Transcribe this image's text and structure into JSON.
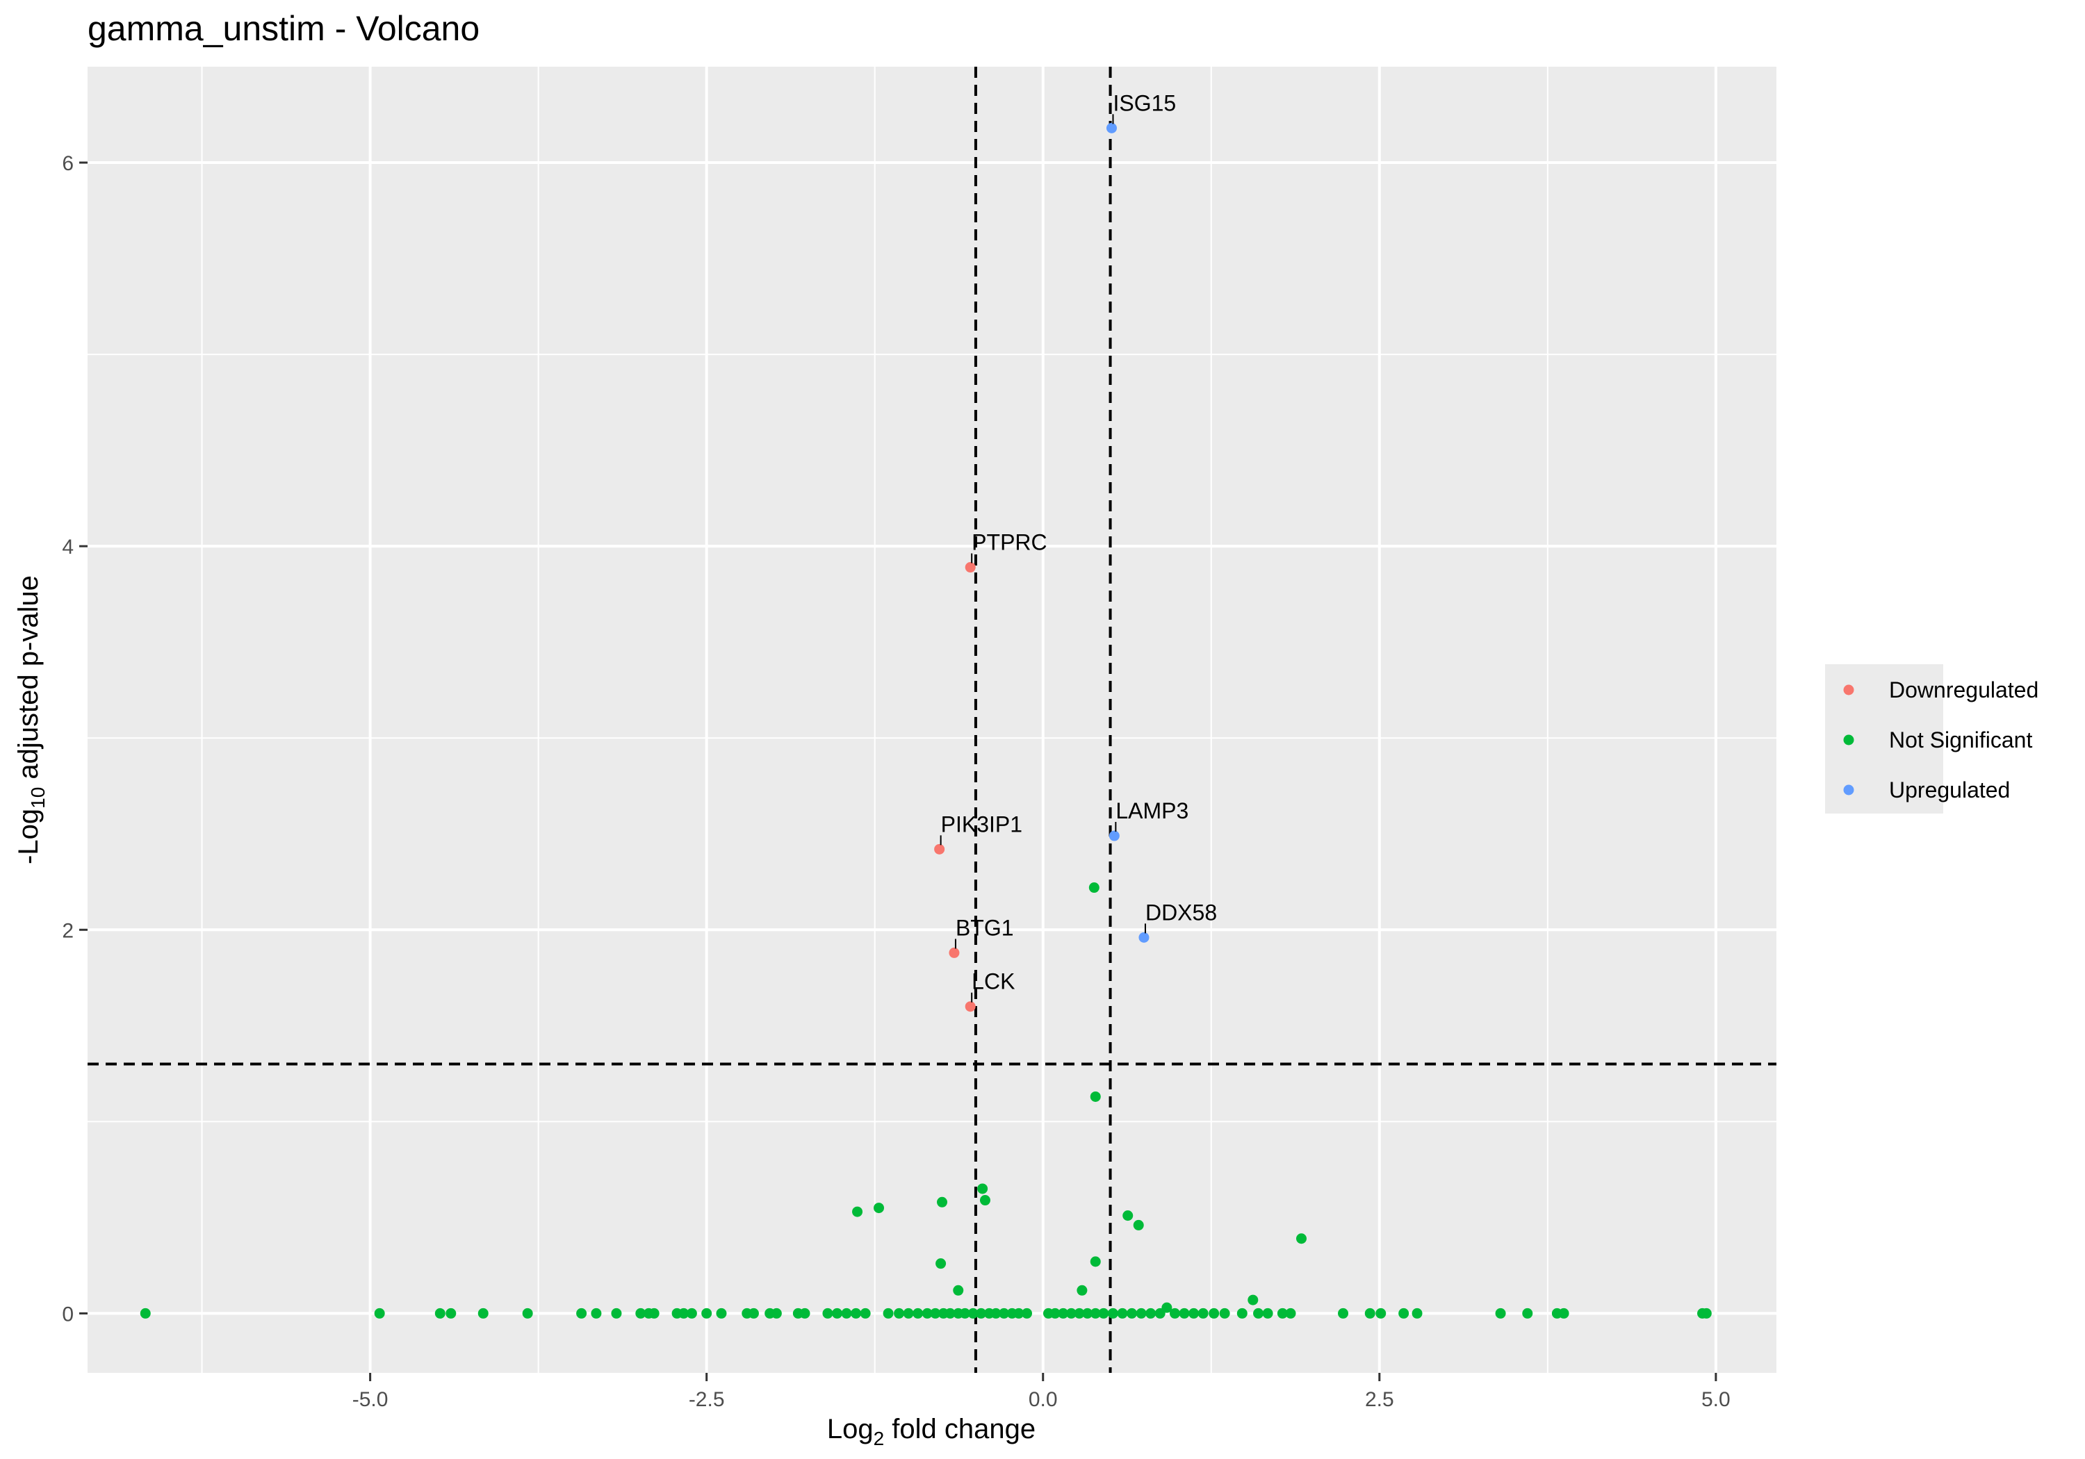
{
  "chart_data": {
    "type": "scatter",
    "title": "gamma_unstim - Volcano",
    "xlabel": {
      "prefix": "Log",
      "sub": "2",
      "suffix": " fold change"
    },
    "ylabel": {
      "prefix": "-Log",
      "sub": "10",
      "suffix": " adjusted p-value"
    },
    "xlim": [
      -7.1,
      5.45
    ],
    "ylim": [
      -0.31,
      6.5
    ],
    "x_ticks": [
      -5.0,
      -2.5,
      0.0,
      2.5,
      5.0
    ],
    "x_tick_labels": [
      "-5.0",
      "-2.5",
      "0.0",
      "2.5",
      "5.0"
    ],
    "y_ticks": [
      0,
      2,
      4,
      6
    ],
    "y_tick_labels": [
      "0",
      "2",
      "4",
      "6"
    ],
    "thresholds": {
      "fc_low": -0.5,
      "fc_high": 0.5,
      "padj_line": 1.3
    },
    "grid": true,
    "legend_placement": "right",
    "colors": {
      "Downregulated": "#F8766D",
      "Not Significant": "#00BA38",
      "Upregulated": "#619CFF",
      "panel": "#EBEBEB",
      "grid": "#FFFFFF"
    },
    "legend": [
      "Downregulated",
      "Not Significant",
      "Upregulated"
    ],
    "series": [
      {
        "name": "Downregulated",
        "points": [
          {
            "x": -0.54,
            "y": 3.89,
            "label": "PTPRC"
          },
          {
            "x": -0.77,
            "y": 2.42,
            "label": "PIK3IP1"
          },
          {
            "x": -0.66,
            "y": 1.88,
            "label": "BTG1"
          },
          {
            "x": -0.54,
            "y": 1.6,
            "label": "LCK"
          }
        ]
      },
      {
        "name": "Upregulated",
        "points": [
          {
            "x": 0.51,
            "y": 6.18,
            "label": "ISG15"
          },
          {
            "x": 0.53,
            "y": 2.49,
            "label": "LAMP3"
          },
          {
            "x": 0.75,
            "y": 1.96,
            "label": "DDX58"
          }
        ]
      },
      {
        "name": "Not Significant",
        "points": [
          {
            "x": 0.38,
            "y": 2.22
          },
          {
            "x": 0.39,
            "y": 1.13
          },
          {
            "x": -0.45,
            "y": 0.65
          },
          {
            "x": -0.43,
            "y": 0.59
          },
          {
            "x": -0.75,
            "y": 0.58
          },
          {
            "x": -1.22,
            "y": 0.55
          },
          {
            "x": -1.38,
            "y": 0.53
          },
          {
            "x": 0.63,
            "y": 0.51
          },
          {
            "x": 0.71,
            "y": 0.46
          },
          {
            "x": 1.92,
            "y": 0.39
          },
          {
            "x": -0.76,
            "y": 0.26
          },
          {
            "x": 0.39,
            "y": 0.27
          },
          {
            "x": -0.63,
            "y": 0.12
          },
          {
            "x": 0.29,
            "y": 0.12
          },
          {
            "x": 1.56,
            "y": 0.07
          },
          {
            "x": 0.92,
            "y": 0.03
          },
          {
            "x": -6.67,
            "y": 0
          },
          {
            "x": -4.93,
            "y": 0
          },
          {
            "x": -4.48,
            "y": 0
          },
          {
            "x": -4.4,
            "y": 0
          },
          {
            "x": -4.16,
            "y": 0
          },
          {
            "x": -3.83,
            "y": 0
          },
          {
            "x": -3.43,
            "y": 0
          },
          {
            "x": -3.32,
            "y": 0
          },
          {
            "x": -3.17,
            "y": 0
          },
          {
            "x": -2.99,
            "y": 0
          },
          {
            "x": -2.93,
            "y": 0
          },
          {
            "x": -2.89,
            "y": 0
          },
          {
            "x": -2.72,
            "y": 0
          },
          {
            "x": -2.67,
            "y": 0
          },
          {
            "x": -2.61,
            "y": 0
          },
          {
            "x": -2.5,
            "y": 0
          },
          {
            "x": -2.39,
            "y": 0
          },
          {
            "x": -2.2,
            "y": 0
          },
          {
            "x": -2.15,
            "y": 0
          },
          {
            "x": -2.03,
            "y": 0
          },
          {
            "x": -1.98,
            "y": 0
          },
          {
            "x": -1.82,
            "y": 0
          },
          {
            "x": -1.77,
            "y": 0
          },
          {
            "x": -1.6,
            "y": 0
          },
          {
            "x": -1.53,
            "y": 0
          },
          {
            "x": -1.46,
            "y": 0
          },
          {
            "x": -1.39,
            "y": 0
          },
          {
            "x": -1.32,
            "y": 0
          },
          {
            "x": -1.15,
            "y": 0
          },
          {
            "x": -1.07,
            "y": 0
          },
          {
            "x": -1.0,
            "y": 0
          },
          {
            "x": -0.93,
            "y": 0
          },
          {
            "x": -0.86,
            "y": 0
          },
          {
            "x": -0.8,
            "y": 0
          },
          {
            "x": -0.74,
            "y": 0
          },
          {
            "x": -0.69,
            "y": 0
          },
          {
            "x": -0.63,
            "y": 0
          },
          {
            "x": -0.58,
            "y": 0
          },
          {
            "x": -0.52,
            "y": 0
          },
          {
            "x": -0.46,
            "y": 0
          },
          {
            "x": -0.4,
            "y": 0
          },
          {
            "x": -0.35,
            "y": 0
          },
          {
            "x": -0.29,
            "y": 0
          },
          {
            "x": -0.23,
            "y": 0
          },
          {
            "x": -0.18,
            "y": 0
          },
          {
            "x": -0.12,
            "y": 0
          },
          {
            "x": 0.04,
            "y": 0
          },
          {
            "x": 0.09,
            "y": 0
          },
          {
            "x": 0.15,
            "y": 0
          },
          {
            "x": 0.21,
            "y": 0
          },
          {
            "x": 0.27,
            "y": 0
          },
          {
            "x": 0.33,
            "y": 0
          },
          {
            "x": 0.39,
            "y": 0
          },
          {
            "x": 0.45,
            "y": 0
          },
          {
            "x": 0.52,
            "y": 0
          },
          {
            "x": 0.59,
            "y": 0
          },
          {
            "x": 0.66,
            "y": 0
          },
          {
            "x": 0.73,
            "y": 0
          },
          {
            "x": 0.8,
            "y": 0
          },
          {
            "x": 0.87,
            "y": 0
          },
          {
            "x": 0.98,
            "y": 0
          },
          {
            "x": 1.05,
            "y": 0
          },
          {
            "x": 1.12,
            "y": 0
          },
          {
            "x": 1.19,
            "y": 0
          },
          {
            "x": 1.27,
            "y": 0
          },
          {
            "x": 1.35,
            "y": 0
          },
          {
            "x": 1.48,
            "y": 0
          },
          {
            "x": 1.6,
            "y": 0
          },
          {
            "x": 1.67,
            "y": 0
          },
          {
            "x": 1.78,
            "y": 0
          },
          {
            "x": 1.84,
            "y": 0
          },
          {
            "x": 2.23,
            "y": 0
          },
          {
            "x": 2.43,
            "y": 0
          },
          {
            "x": 2.51,
            "y": 0
          },
          {
            "x": 2.68,
            "y": 0
          },
          {
            "x": 2.78,
            "y": 0
          },
          {
            "x": 3.4,
            "y": 0
          },
          {
            "x": 3.6,
            "y": 0
          },
          {
            "x": 3.82,
            "y": 0
          },
          {
            "x": 3.87,
            "y": 0
          },
          {
            "x": 4.9,
            "y": 0
          },
          {
            "x": 4.93,
            "y": 0
          }
        ]
      }
    ]
  }
}
